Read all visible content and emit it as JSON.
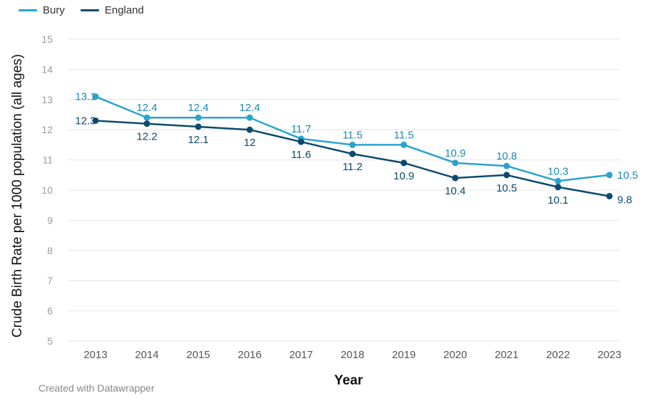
{
  "chart_data": {
    "type": "line",
    "xlabel": "Year",
    "ylabel": "Crude Birth Rate per 1000 population (all ages)",
    "ylim": [
      5,
      15
    ],
    "yticks": [
      5,
      6,
      7,
      8,
      9,
      10,
      11,
      12,
      13,
      14,
      15
    ],
    "categories": [
      "2013",
      "2014",
      "2015",
      "2016",
      "2017",
      "2018",
      "2019",
      "2020",
      "2021",
      "2022",
      "2023"
    ],
    "grid": true,
    "legend_position": "top-left",
    "series": [
      {
        "name": "Bury",
        "color": "#2aa3cf",
        "label_color": "#1e89b3",
        "values": [
          13.1,
          12.4,
          12.4,
          12.4,
          11.7,
          11.5,
          11.5,
          10.9,
          10.8,
          10.3,
          10.5
        ],
        "labels": [
          "13.1",
          "12.4",
          "12.4",
          "12.4",
          "11.7",
          "11.5",
          "11.5",
          "10.9",
          "10.8",
          "10.3",
          "10.5"
        ]
      },
      {
        "name": "England",
        "color": "#0b4a6e",
        "label_color": "#0b4a6e",
        "values": [
          12.3,
          12.2,
          12.1,
          12.0,
          11.6,
          11.2,
          10.9,
          10.4,
          10.5,
          10.1,
          9.8
        ],
        "labels": [
          "12.3",
          "12.2",
          "12.1",
          "12",
          "11.6",
          "11.2",
          "10.9",
          "10.4",
          "10.5",
          "10.1",
          "9.8"
        ]
      }
    ]
  },
  "footer": {
    "credit": "Created with Datawrapper"
  }
}
